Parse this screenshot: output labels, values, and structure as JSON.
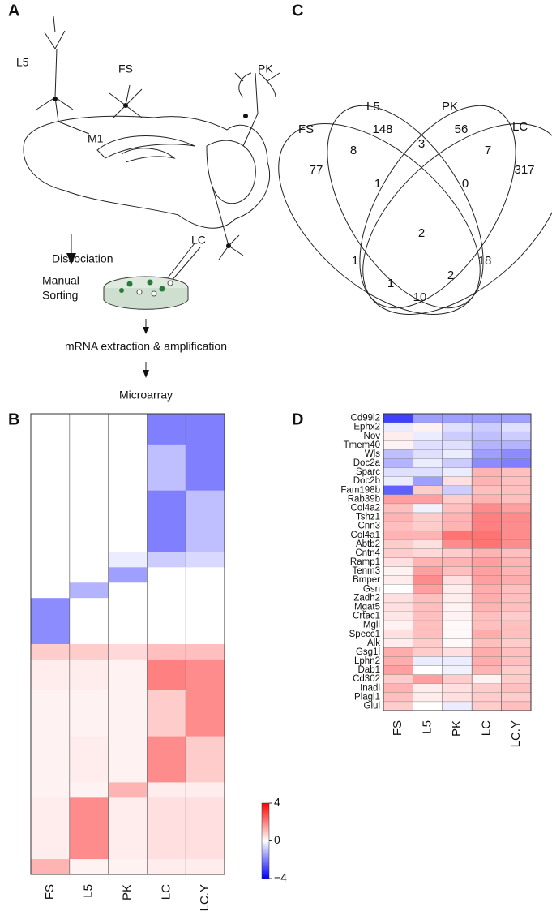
{
  "panel_a": {
    "label": "A",
    "cells": [
      "L5",
      "FS",
      "M1",
      "PK",
      "LC"
    ],
    "steps": [
      "Dissociation",
      "Manual",
      "Sorting",
      "mRNA extraction & amplification",
      "Microarray"
    ]
  },
  "panel_b": {
    "label": "B"
  },
  "panel_c": {
    "label": "C",
    "sets": [
      "FS",
      "L5",
      "PK",
      "LC"
    ],
    "counts": [
      77,
      148,
      56,
      317,
      8,
      3,
      7,
      1,
      0,
      2,
      1,
      18,
      1,
      2,
      10
    ]
  },
  "panel_d": {
    "label": "D"
  },
  "colorbar": {
    "clim": [
      -4,
      4
    ],
    "ticks": [
      4,
      0,
      {
        "value": -4,
        "label": "−4"
      }
    ]
  },
  "chart_data": [
    {
      "type": "heatmap",
      "columns": [
        "FS",
        "L5",
        "PK",
        "LC",
        "LC.Y"
      ],
      "values": [
        [
          0,
          0,
          0,
          -2,
          -2
        ],
        [
          0,
          0,
          0,
          -2,
          -2
        ],
        [
          0,
          0,
          0,
          -1,
          -2
        ],
        [
          0,
          0,
          0,
          -1,
          -2
        ],
        [
          0,
          0,
          0,
          -1,
          -2
        ],
        [
          0,
          0,
          0,
          -2,
          -1
        ],
        [
          0,
          0,
          0,
          -2,
          -1
        ],
        [
          0,
          0,
          0,
          -2,
          -1
        ],
        [
          0,
          0,
          0,
          -2,
          -1
        ],
        [
          0,
          0,
          -0.3,
          -0.8,
          -0.6
        ],
        [
          0,
          0,
          -1.5,
          0,
          0
        ],
        [
          0,
          -1.2,
          0,
          0,
          0
        ],
        [
          -1.8,
          0,
          0,
          0,
          0
        ],
        [
          -1.8,
          0,
          0,
          0,
          0
        ],
        [
          -1.8,
          0,
          0,
          0,
          0
        ],
        [
          0.8,
          0.8,
          0.6,
          1,
          1
        ],
        [
          0.3,
          0.3,
          0.2,
          2,
          1.8
        ],
        [
          0.3,
          0.3,
          0.2,
          2,
          1.8
        ],
        [
          0.2,
          0.2,
          0.2,
          0.8,
          1.8
        ],
        [
          0.2,
          0.2,
          0.2,
          0.8,
          1.8
        ],
        [
          0.2,
          0.2,
          0.2,
          0.8,
          1.8
        ],
        [
          0.2,
          0.3,
          0.2,
          1.8,
          0.8
        ],
        [
          0.2,
          0.3,
          0.2,
          1.8,
          0.8
        ],
        [
          0.2,
          0.3,
          0.2,
          1.8,
          0.8
        ],
        [
          0.2,
          0.2,
          1.2,
          0.3,
          0.3
        ],
        [
          0.3,
          1.8,
          0.3,
          0.5,
          0.5
        ],
        [
          0.3,
          1.8,
          0.3,
          0.5,
          0.5
        ],
        [
          0.3,
          1.8,
          0.3,
          0.5,
          0.5
        ],
        [
          0.3,
          1.8,
          0.3,
          0.5,
          0.5
        ],
        [
          1.2,
          0.2,
          0.2,
          0.3,
          0.3
        ]
      ]
    },
    {
      "type": "heatmap",
      "columns": [
        "FS",
        "L5",
        "PK",
        "LC",
        "LC.Y"
      ],
      "rows": [
        "Cd99l2",
        "Ephx2",
        "Nov",
        "Tmem40",
        "Wls",
        "Doc2a",
        "Sparc",
        "Doc2b",
        "Fam198b",
        "Rab39b",
        "Col4a2",
        "Tshz1",
        "Cnn3",
        "Col4a1",
        "Abtb2",
        "Cntn4",
        "Ramp1",
        "Tenm3",
        "Bmper",
        "Gsn",
        "Zadh2",
        "Mgat5",
        "Crtac1",
        "Mgll",
        "Specc1",
        "Alk",
        "Gsg1l",
        "Lphn2",
        "Dab1",
        "Cd302",
        "Inadl",
        "Plagl1",
        "Glul"
      ],
      "values": [
        [
          -3,
          -1.5,
          -1.5,
          -1.5,
          -1.5
        ],
        [
          -0.3,
          0.2,
          -0.5,
          -0.8,
          -0.5
        ],
        [
          0.3,
          -0.3,
          -0.8,
          -1,
          -0.8
        ],
        [
          0.2,
          -0.5,
          -0.5,
          -1.2,
          -1.2
        ],
        [
          -1,
          -0.5,
          -0.3,
          -1.5,
          -1.8
        ],
        [
          -1.2,
          -0.3,
          -0.8,
          -1.8,
          -2
        ],
        [
          -0.5,
          -0.5,
          -0.3,
          1.2,
          1
        ],
        [
          -0.3,
          -1.5,
          0.5,
          1.2,
          1
        ],
        [
          -2.5,
          0.8,
          -0.8,
          1,
          1
        ],
        [
          1.5,
          1.5,
          0.8,
          1.2,
          1
        ],
        [
          1,
          -0.2,
          1,
          1.8,
          1.5
        ],
        [
          1.2,
          0.8,
          1.2,
          2,
          1.8
        ],
        [
          1,
          0.8,
          1.2,
          2,
          1.8
        ],
        [
          1.2,
          1.2,
          2.2,
          2.2,
          1.8
        ],
        [
          0.8,
          0.5,
          1.8,
          2.2,
          1.8
        ],
        [
          0.8,
          0.6,
          0.8,
          1.2,
          1
        ],
        [
          0.5,
          1.2,
          1.2,
          1.5,
          1.2
        ],
        [
          0.2,
          1.5,
          1,
          1.5,
          1.2
        ],
        [
          0.3,
          1.8,
          0.5,
          1.5,
          1.3
        ],
        [
          0,
          1.5,
          0.3,
          1.3,
          1
        ],
        [
          0.5,
          1,
          0.3,
          1.3,
          1
        ],
        [
          0.5,
          1,
          0.2,
          1.2,
          1
        ],
        [
          0.4,
          1,
          0.2,
          1,
          0.8
        ],
        [
          0.2,
          1,
          0.1,
          1,
          1
        ],
        [
          0.5,
          1,
          0.1,
          1.3,
          1
        ],
        [
          0.3,
          0.8,
          0.1,
          1,
          0.8
        ],
        [
          1.3,
          0.8,
          0.5,
          1.3,
          1
        ],
        [
          1.3,
          -0.3,
          -0.3,
          1.3,
          1
        ],
        [
          1.5,
          0,
          -0.2,
          1.2,
          0.8
        ],
        [
          0.8,
          1.5,
          0.8,
          0.2,
          0.8
        ],
        [
          1.2,
          0.3,
          0.5,
          0.8,
          1
        ],
        [
          1,
          0.3,
          0.5,
          0.8,
          0.8
        ],
        [
          0.8,
          0,
          -0.3,
          0.8,
          1
        ]
      ]
    }
  ]
}
